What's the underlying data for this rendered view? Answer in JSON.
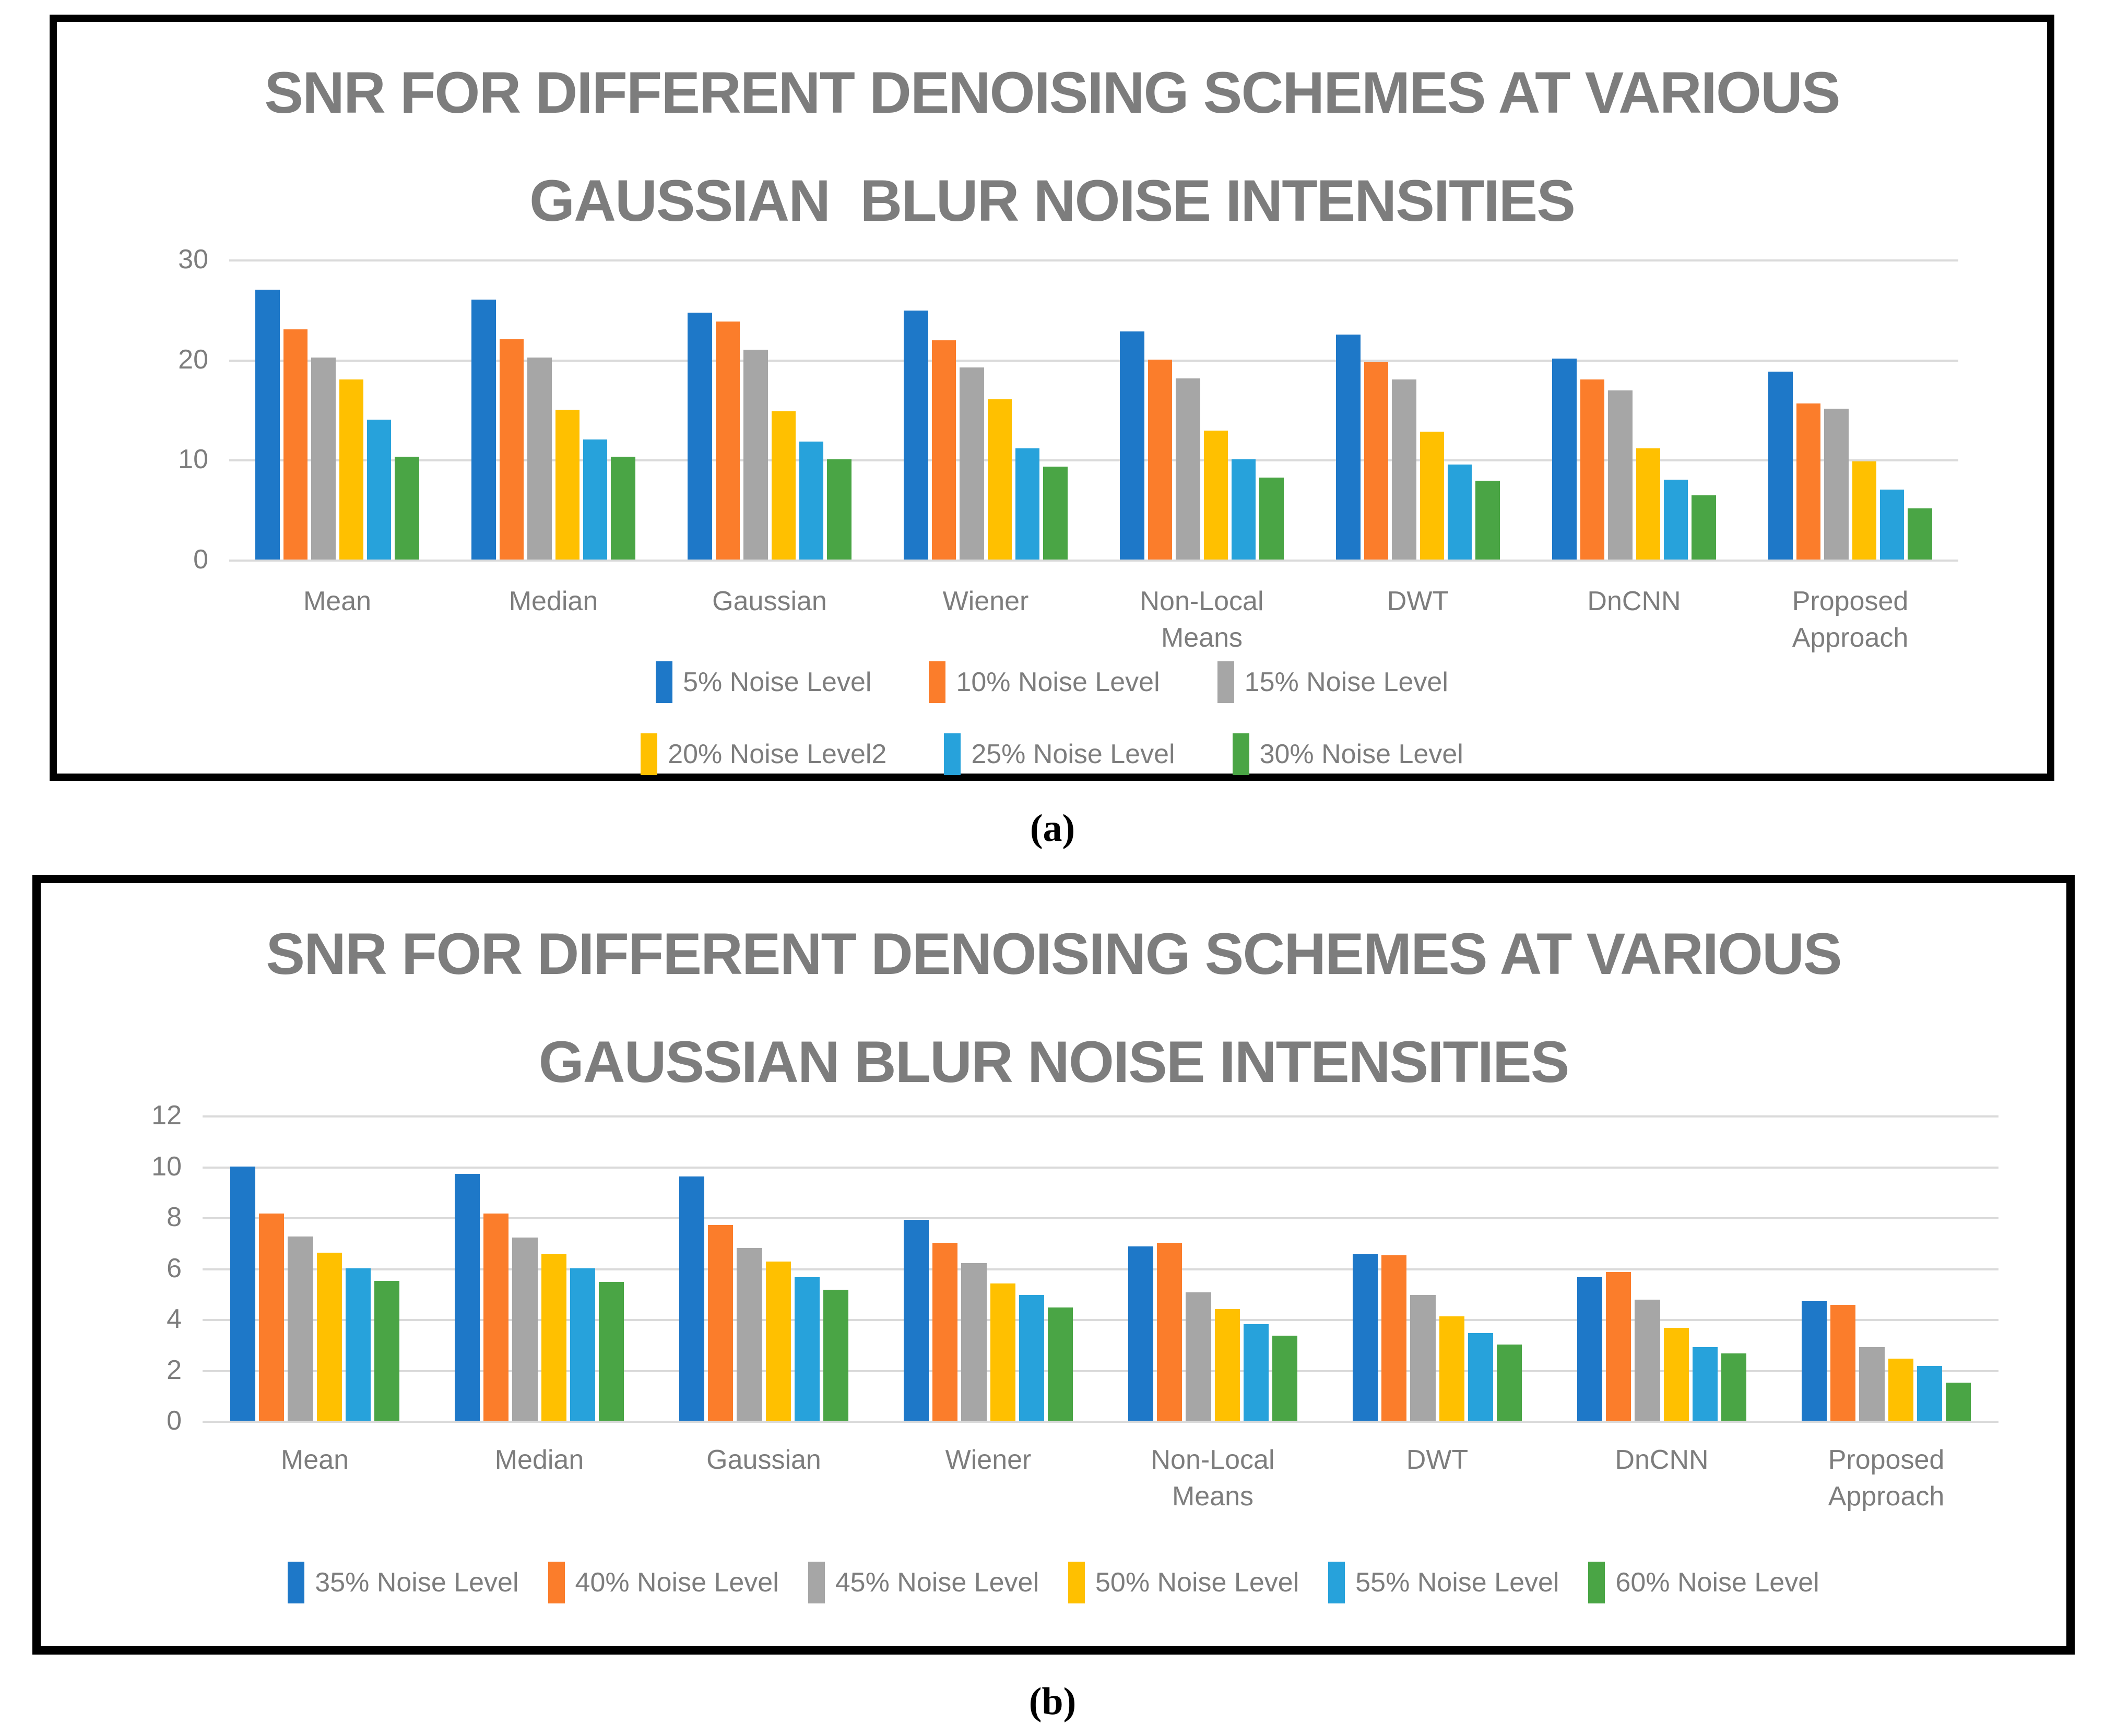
{
  "page": {
    "caption_a": "(a)",
    "caption_b": "(b)"
  },
  "chart_data": [
    {
      "type": "bar",
      "panel": "a",
      "title_lines": [
        "SNR FOR DIFFERENT DENOISING SCHEMES AT VARIOUS",
        "GAUSSIAN  BLUR NOISE INTENSITIES"
      ],
      "ylabel": "",
      "xlabel": "",
      "ylim": [
        0,
        30
      ],
      "yticks": [
        30,
        20,
        10,
        0
      ],
      "grid": true,
      "legend_position": "bottom",
      "legend_rows": 2,
      "categories": [
        "Mean",
        "Median",
        "Gaussian",
        "Wiener",
        "Non-Local Means",
        "DWT",
        "DnCNN",
        "Proposed Approach"
      ],
      "series": [
        {
          "name": "5% Noise Level",
          "color": "#1E78C8",
          "values": [
            27.0,
            26.0,
            24.7,
            24.9,
            22.8,
            22.5,
            20.1,
            18.8
          ]
        },
        {
          "name": "10% Noise Level",
          "color": "#FB7D2B",
          "values": [
            23.0,
            22.0,
            23.8,
            21.9,
            20.0,
            19.7,
            18.0,
            15.6
          ]
        },
        {
          "name": "15% Noise Level",
          "color": "#A6A6A6",
          "values": [
            20.2,
            20.2,
            21.0,
            19.2,
            18.1,
            18.0,
            16.9,
            15.1
          ]
        },
        {
          "name": "20% Noise Level2",
          "color": "#FFC000",
          "values": [
            18.0,
            15.0,
            14.8,
            16.0,
            12.9,
            12.8,
            11.1,
            9.8
          ]
        },
        {
          "name": "25% Noise Level",
          "color": "#27A2DB",
          "values": [
            14.0,
            12.0,
            11.8,
            11.1,
            10.0,
            9.5,
            8.0,
            7.0
          ]
        },
        {
          "name": "30% Noise Level",
          "color": "#4AA545",
          "values": [
            10.3,
            10.3,
            10.0,
            9.3,
            8.2,
            7.9,
            6.4,
            5.1
          ]
        }
      ]
    },
    {
      "type": "bar",
      "panel": "b",
      "title_lines": [
        "SNR FOR DIFFERENT DENOISING SCHEMES AT VARIOUS",
        "GAUSSIAN BLUR NOISE INTENSITIES"
      ],
      "ylabel": "",
      "xlabel": "",
      "ylim": [
        0,
        12
      ],
      "yticks": [
        12,
        10,
        8,
        6,
        4,
        2,
        0
      ],
      "grid": true,
      "legend_position": "bottom",
      "legend_rows": 1,
      "categories": [
        "Mean",
        "Median",
        "Gaussian",
        "Wiener",
        "Non-Local Means",
        "DWT",
        "DnCNN",
        "Proposed Approach"
      ],
      "series": [
        {
          "name": "35% Noise Level",
          "color": "#1E78C8",
          "values": [
            10.0,
            9.7,
            9.6,
            7.9,
            6.85,
            6.55,
            5.65,
            4.7
          ]
        },
        {
          "name": "40% Noise Level",
          "color": "#FB7D2B",
          "values": [
            8.15,
            8.15,
            7.7,
            7.0,
            7.0,
            6.5,
            5.85,
            4.55
          ]
        },
        {
          "name": "45% Noise Level",
          "color": "#A6A6A6",
          "values": [
            7.25,
            7.2,
            6.8,
            6.2,
            5.05,
            4.95,
            4.75,
            2.9
          ]
        },
        {
          "name": "50% Noise Level",
          "color": "#FFC000",
          "values": [
            6.6,
            6.55,
            6.25,
            5.4,
            4.4,
            4.1,
            3.65,
            2.45
          ]
        },
        {
          "name": "55% Noise Level",
          "color": "#27A2DB",
          "values": [
            6.0,
            6.0,
            5.65,
            4.95,
            3.8,
            3.45,
            2.9,
            2.15
          ]
        },
        {
          "name": "60% Noise Level",
          "color": "#4AA545",
          "values": [
            5.5,
            5.45,
            5.15,
            4.45,
            3.35,
            3.0,
            2.65,
            1.5
          ]
        }
      ]
    }
  ]
}
